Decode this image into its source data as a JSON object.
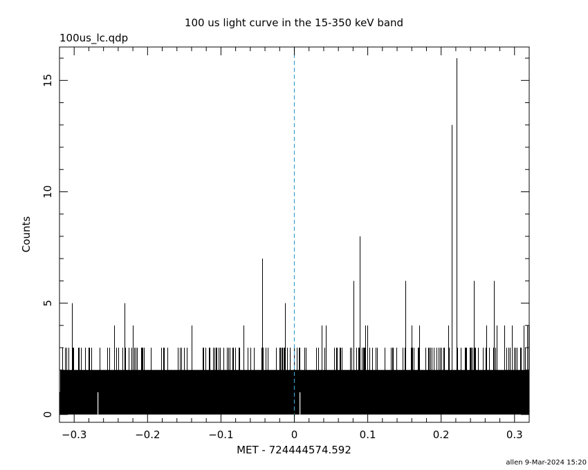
{
  "chart_data": {
    "type": "bar",
    "title": "100 us light curve in the 15-350 keV band",
    "file_label": "100us_lc.qdp",
    "xlabel": "MET - 724444574.592",
    "ylabel": "Counts",
    "footer": "allen  9-Mar-2024 15:20",
    "xlim": [
      -0.32,
      0.32
    ],
    "ylim": [
      -0.35,
      16.5
    ],
    "x_ticks": [
      -0.3,
      -0.2,
      -0.1,
      0,
      0.1,
      0.2,
      0.3
    ],
    "x_tick_labels": [
      "−0.3",
      "−0.2",
      "−0.1",
      "0",
      "0.1",
      "0.2",
      "0.3"
    ],
    "y_ticks": [
      0,
      5,
      10,
      15
    ],
    "y_tick_labels": [
      "0",
      "5",
      "10",
      "15"
    ],
    "trigger_time": 0,
    "bin_width": 0.0001,
    "baseline_counts": 1,
    "line_color": "#000000",
    "trigger_line_color": "#3aa0c8",
    "notable_bins": [
      {
        "x": -0.303,
        "y": 5
      },
      {
        "x": -0.246,
        "y": 4
      },
      {
        "x": -0.231,
        "y": 5
      },
      {
        "x": -0.22,
        "y": 4
      },
      {
        "x": -0.14,
        "y": 4
      },
      {
        "x": -0.069,
        "y": 4
      },
      {
        "x": -0.044,
        "y": 7
      },
      {
        "x": -0.013,
        "y": 5
      },
      {
        "x": 0.037,
        "y": 4
      },
      {
        "x": 0.043,
        "y": 4
      },
      {
        "x": 0.081,
        "y": 6
      },
      {
        "x": 0.089,
        "y": 8
      },
      {
        "x": 0.097,
        "y": 4
      },
      {
        "x": 0.099,
        "y": 4
      },
      {
        "x": 0.151,
        "y": 6
      },
      {
        "x": 0.16,
        "y": 4
      },
      {
        "x": 0.17,
        "y": 4
      },
      {
        "x": 0.21,
        "y": 4
      },
      {
        "x": 0.214,
        "y": 13
      },
      {
        "x": 0.221,
        "y": 16
      },
      {
        "x": 0.245,
        "y": 6
      },
      {
        "x": 0.262,
        "y": 4
      },
      {
        "x": 0.272,
        "y": 6
      },
      {
        "x": 0.276,
        "y": 4
      },
      {
        "x": 0.286,
        "y": 4
      },
      {
        "x": 0.296,
        "y": 4
      },
      {
        "x": 0.312,
        "y": 4
      },
      {
        "x": 0.317,
        "y": 4
      },
      {
        "x": 0.319,
        "y": 4
      }
    ],
    "zero_bins": [
      -0.268,
      0.007
    ]
  }
}
